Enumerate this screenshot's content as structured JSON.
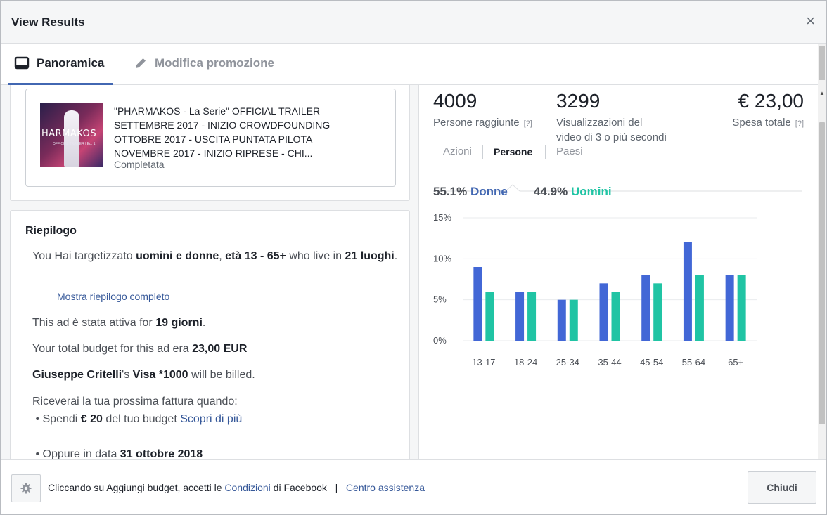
{
  "dialog": {
    "title": "View Results",
    "close_symbol": "×"
  },
  "tabs": [
    {
      "label": "Panoramica",
      "icon": "tablet-icon",
      "active": true
    },
    {
      "label": "Modifica promozione",
      "icon": "pencil-icon",
      "active": false
    }
  ],
  "ad": {
    "thumbnail_text": "HARMAKOS",
    "thumbnail_sub": "OFFICIAL TRAILER | Ep. 1",
    "description": "\"PHARMAKOS - La Serie\" OFFICIAL TRAILER SETTEMBRE 2017 - INIZIO CROWDFOUNDING OTTOBRE 2017 - USCITA PUNTATA PILOTA NOVEMBRE 2017 - INIZIO RIPRESE - CHI...",
    "status": "Completata"
  },
  "summary": {
    "title": "Riepilogo",
    "targeting_1": "You Hai targetizzato ",
    "targeting_bold_1": "uomini e donne",
    "targeting_2": ", ",
    "targeting_bold_2": "età 13 - 65+",
    "targeting_3": " who live in ",
    "targeting_bold_3": "21 luoghi",
    "targeting_4": ".",
    "show_full": "Mostra riepilogo completo",
    "active_1": "This ad è stata attiva for ",
    "active_bold": "19 giorni",
    "active_2": ".",
    "budget_1": "Your total budget for this ad era ",
    "budget_bold": "23,00 EUR",
    "billed_bold_1": "Giuseppe Critelli",
    "billed_1": "'s ",
    "billed_bold_2": "Visa *1000",
    "billed_2": " will be billed.",
    "invoice_intro": "Riceverai la tua prossima fattura quando:",
    "bullet1_1": "Spendi ",
    "bullet1_bold": "€ 20",
    "bullet1_2": " del tuo budget ",
    "bullet1_link": "Scopri di più",
    "bullet2_1": "Oppure in data ",
    "bullet2_bold": "31 ottobre 2018"
  },
  "metrics": {
    "reach_value": "4009",
    "reach_label": "Persone raggiunte",
    "views_value": "3299",
    "views_label_1": "Visualizzazioni del",
    "views_label_2": "video di 3 o più secondi",
    "spend_value": "€ 23,00",
    "spend_label": "Spesa totale",
    "help": "[?]"
  },
  "subtabs": [
    "Azioni",
    "Persone",
    "Paesi"
  ],
  "active_subtab": "Persone",
  "gender": {
    "women_pct": "55.1%",
    "women_label": "Donne",
    "men_pct": "44.9%",
    "men_label": "Uomini"
  },
  "chart_data": {
    "type": "bar",
    "categories": [
      "13-17",
      "18-24",
      "25-34",
      "35-44",
      "45-54",
      "55-64",
      "65+"
    ],
    "series": [
      {
        "name": "Donne",
        "values": [
          9,
          6,
          5,
          7,
          8,
          12,
          8
        ],
        "color": "#4267d6"
      },
      {
        "name": "Uomini",
        "values": [
          6,
          6,
          5,
          6,
          7,
          8,
          8
        ],
        "color": "#20c4a4"
      }
    ],
    "yticks": [
      "15%",
      "10%",
      "5%",
      "0%"
    ],
    "ylim": [
      0,
      15
    ],
    "grid": true
  },
  "footer": {
    "text_1": "Cliccando su Aggiungi budget, accetti le ",
    "terms_link": "Condizioni",
    "text_2": " di Facebook",
    "separator": "|",
    "help_link": "Centro assistenza",
    "close_label": "Chiudi"
  }
}
